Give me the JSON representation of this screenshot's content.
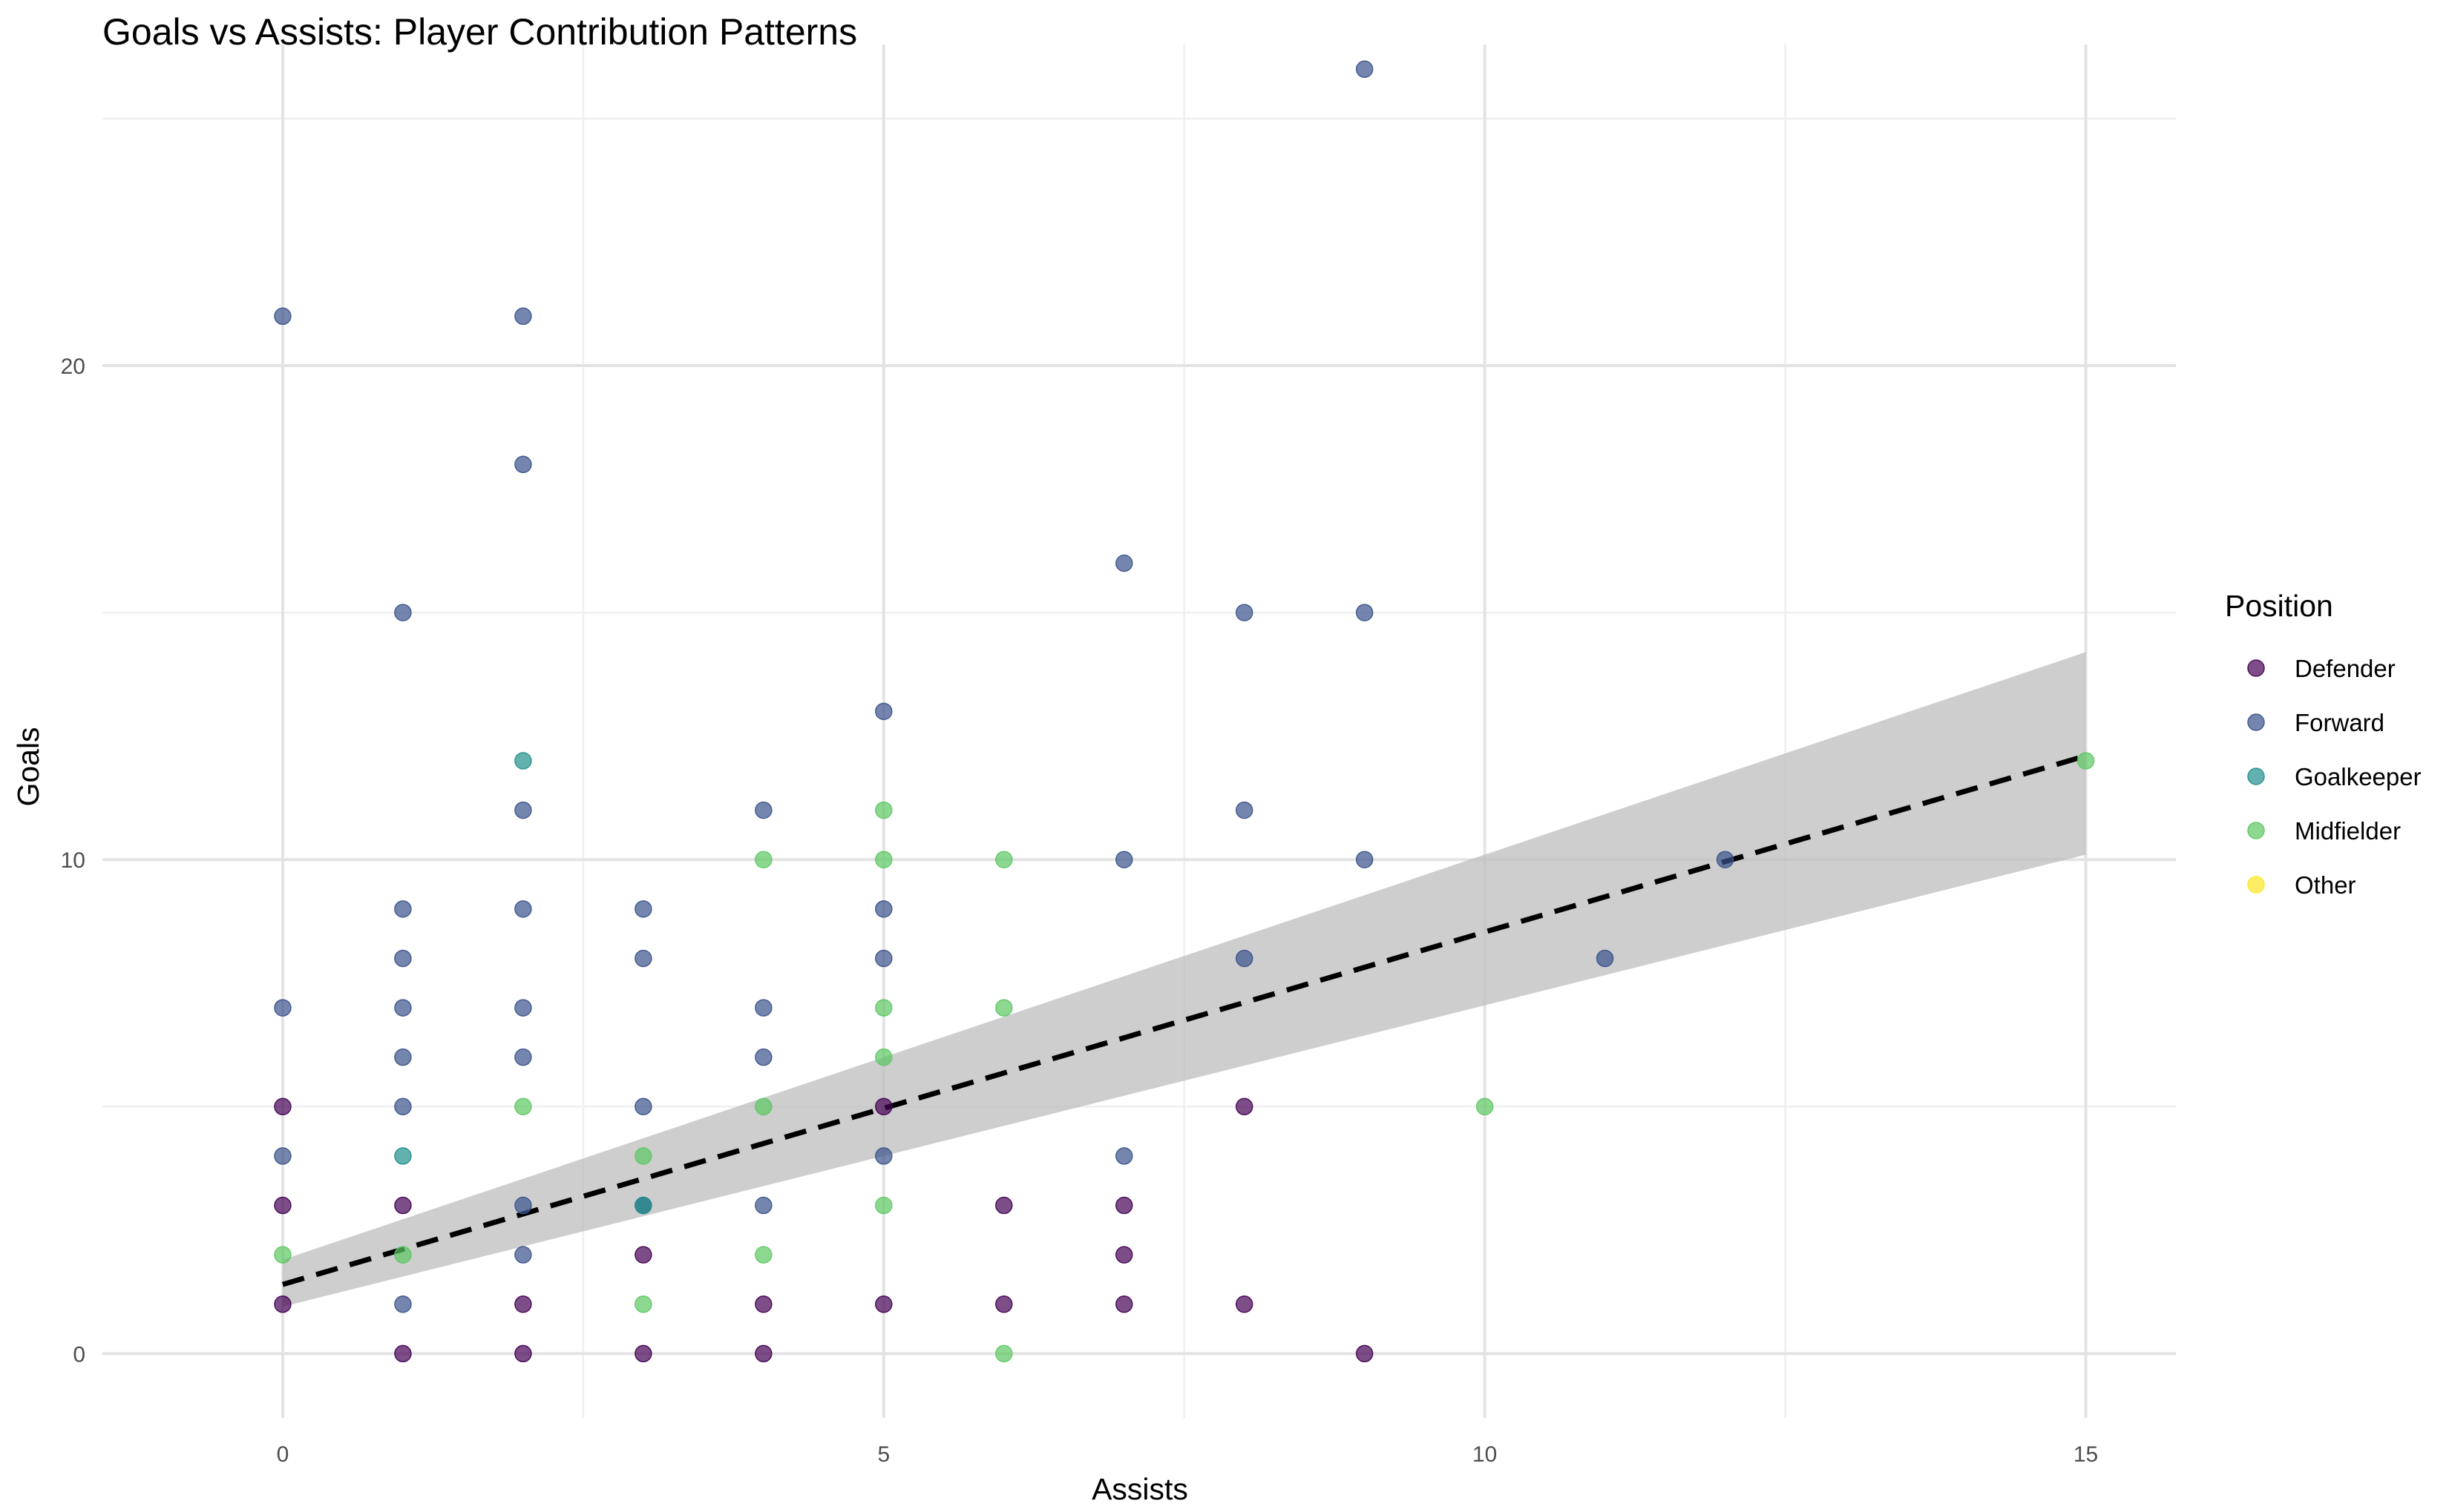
{
  "chart_data": {
    "type": "scatter",
    "title": "Goals vs Assists: Player Contribution Patterns",
    "xlabel": "Assists",
    "ylabel": "Goals",
    "xlim": [
      -1.5,
      15.75
    ],
    "ylim": [
      -1.3,
      26.5
    ],
    "x_ticks": [
      "0",
      "5",
      "10",
      "15"
    ],
    "y_ticks": [
      "0",
      "10",
      "20"
    ],
    "x_tick_values": [
      0,
      5,
      10,
      15
    ],
    "y_tick_values": [
      0,
      10,
      20
    ],
    "x_minor": [
      2.5,
      7.5,
      12.5
    ],
    "y_minor": [
      5,
      15,
      25
    ],
    "grid": true,
    "legend": {
      "title": "Position",
      "placement": "right",
      "entries": [
        "Defender",
        "Forward",
        "Goalkeeper",
        "Midfielder",
        "Other"
      ]
    },
    "colors": {
      "Defender": "#440154",
      "Forward": "#3B528B",
      "Goalkeeper": "#21908C",
      "Midfielder": "#5DC863",
      "Other": "#FDE725",
      "trend": "#000000",
      "ribbon": "#bdbdbd"
    },
    "point_opacity": 0.7,
    "series": [
      {
        "name": "Defender",
        "points": [
          [
            0,
            5
          ],
          [
            0,
            3
          ],
          [
            0,
            1
          ],
          [
            1,
            3
          ],
          [
            1,
            0
          ],
          [
            2,
            1
          ],
          [
            2,
            0
          ],
          [
            3,
            2
          ],
          [
            3,
            0
          ],
          [
            4,
            1
          ],
          [
            4,
            0
          ],
          [
            5,
            5
          ],
          [
            5,
            1
          ],
          [
            6,
            3
          ],
          [
            6,
            1
          ],
          [
            7,
            3
          ],
          [
            7,
            2
          ],
          [
            7,
            1
          ],
          [
            8,
            5
          ],
          [
            8,
            1
          ],
          [
            9,
            0
          ]
        ]
      },
      {
        "name": "Forward",
        "points": [
          [
            0,
            21
          ],
          [
            0,
            7
          ],
          [
            0,
            4
          ],
          [
            1,
            15
          ],
          [
            1,
            9
          ],
          [
            1,
            8
          ],
          [
            1,
            7
          ],
          [
            1,
            6
          ],
          [
            1,
            5
          ],
          [
            1,
            1
          ],
          [
            2,
            21
          ],
          [
            2,
            18
          ],
          [
            2,
            11
          ],
          [
            2,
            9
          ],
          [
            2,
            7
          ],
          [
            2,
            6
          ],
          [
            2,
            3
          ],
          [
            2,
            2
          ],
          [
            3,
            9
          ],
          [
            3,
            8
          ],
          [
            3,
            5
          ],
          [
            3,
            3
          ],
          [
            4,
            11
          ],
          [
            4,
            7
          ],
          [
            4,
            6
          ],
          [
            4,
            3
          ],
          [
            5,
            13
          ],
          [
            5,
            9
          ],
          [
            5,
            8
          ],
          [
            5,
            4
          ],
          [
            7,
            16
          ],
          [
            7,
            10
          ],
          [
            7,
            4
          ],
          [
            8,
            15
          ],
          [
            8,
            11
          ],
          [
            8,
            8
          ],
          [
            9,
            26
          ],
          [
            9,
            15
          ],
          [
            9,
            10
          ],
          [
            11,
            8
          ],
          [
            12,
            10
          ]
        ]
      },
      {
        "name": "Goalkeeper",
        "points": [
          [
            1,
            4
          ],
          [
            2,
            12
          ],
          [
            3,
            3
          ]
        ]
      },
      {
        "name": "Midfielder",
        "points": [
          [
            0,
            2
          ],
          [
            1,
            2
          ],
          [
            2,
            5
          ],
          [
            3,
            4
          ],
          [
            3,
            1
          ],
          [
            4,
            10
          ],
          [
            4,
            5
          ],
          [
            4,
            2
          ],
          [
            5,
            11
          ],
          [
            5,
            10
          ],
          [
            5,
            7
          ],
          [
            5,
            6
          ],
          [
            5,
            3
          ],
          [
            6,
            10
          ],
          [
            6,
            7
          ],
          [
            6,
            0
          ],
          [
            10,
            5
          ],
          [
            15,
            12
          ]
        ]
      },
      {
        "name": "Other",
        "points": []
      }
    ],
    "trend": {
      "x": [
        0,
        15
      ],
      "y": [
        1.4,
        12.1
      ],
      "ci_lower": [
        0.95,
        10.1
      ],
      "ci_upper": [
        1.9,
        14.2
      ]
    }
  }
}
